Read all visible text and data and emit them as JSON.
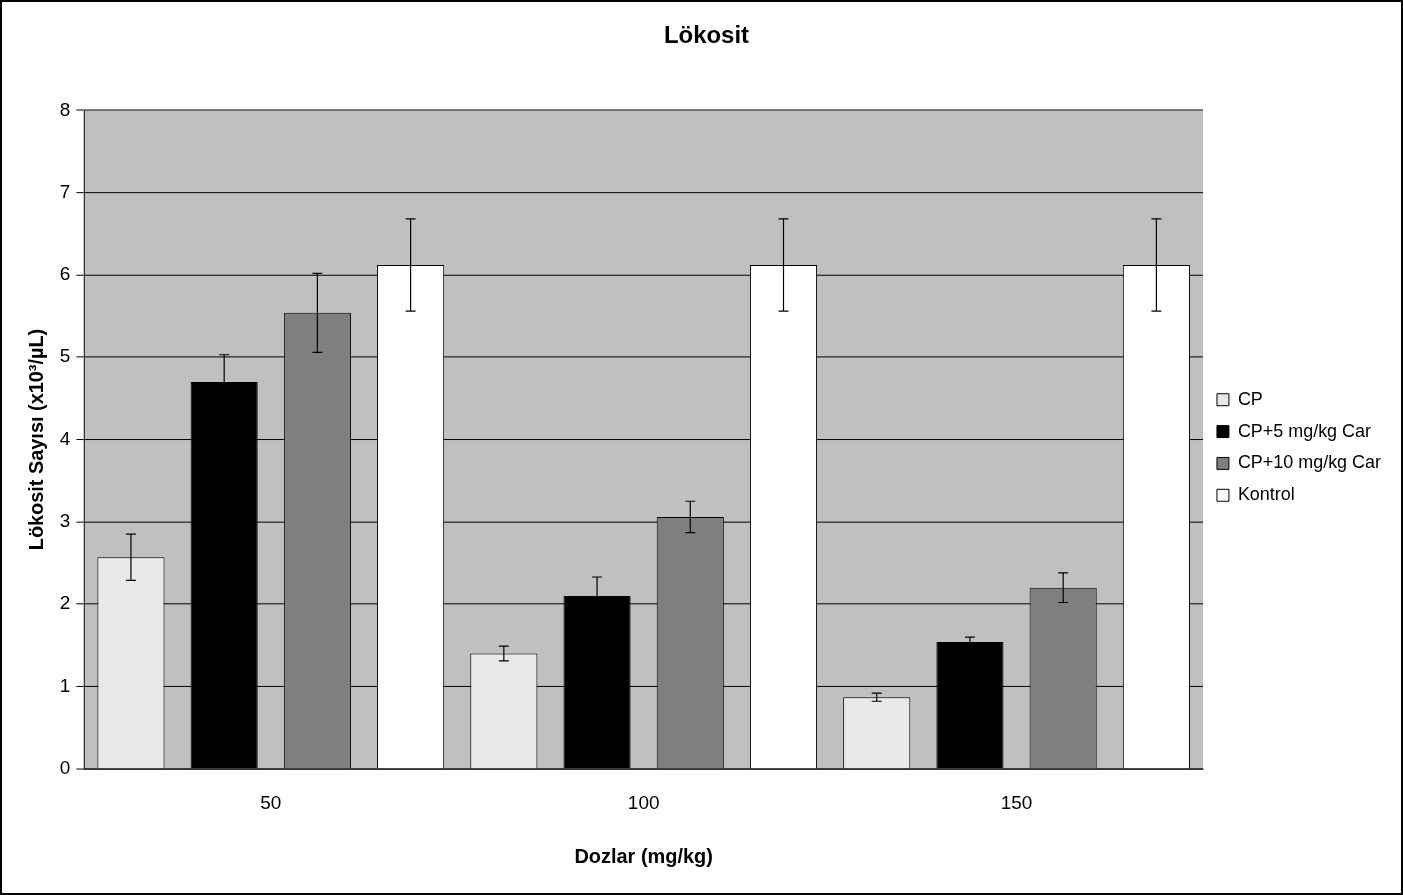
{
  "chart_data": {
    "type": "bar",
    "title": "Lökosit",
    "xlabel": "Dozlar (mg/kg)",
    "ylabel": "Lökosit Sayısı (x10³/µL)",
    "categories": [
      "50",
      "100",
      "150"
    ],
    "series": [
      {
        "name": "CP",
        "color": "#e8e8e8",
        "values": [
          2.57,
          1.4,
          0.87
        ],
        "errors": [
          0.28,
          0.09,
          0.05
        ]
      },
      {
        "name": "CP+5 mg/kg Car",
        "color": "#000000",
        "values": [
          4.7,
          2.1,
          1.54
        ],
        "errors": [
          0.33,
          0.23,
          0.06
        ]
      },
      {
        "name": "CP+10 mg/kg Car",
        "color": "#7f7f7f",
        "values": [
          5.54,
          3.06,
          2.2
        ],
        "errors": [
          0.48,
          0.19,
          0.18
        ]
      },
      {
        "name": "Kontrol",
        "color": "#ffffff",
        "values": [
          6.12,
          6.12,
          6.12
        ],
        "errors": [
          0.56,
          0.56,
          0.56
        ]
      }
    ],
    "ylim": [
      0,
      8
    ],
    "yticks": [
      0,
      1,
      2,
      3,
      4,
      5,
      6,
      7,
      8
    ],
    "grid": "y",
    "legend": "right"
  }
}
